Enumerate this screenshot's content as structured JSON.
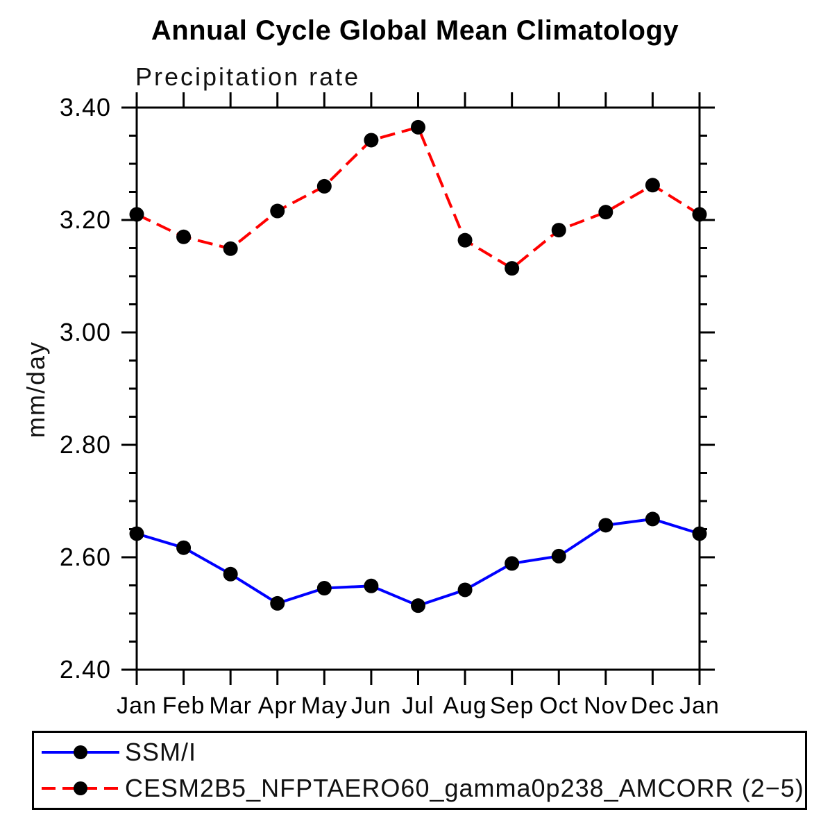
{
  "chart_data": {
    "type": "line",
    "title": "Annual Cycle Global Mean Climatology",
    "subtitle": "Precipitation rate",
    "ylabel": "mm/day",
    "xlabel": "",
    "categories": [
      "Jan",
      "Feb",
      "Mar",
      "Apr",
      "May",
      "Jun",
      "Jul",
      "Aug",
      "Sep",
      "Oct",
      "Nov",
      "Dec",
      "Jan"
    ],
    "ylim": [
      2.4,
      3.4
    ],
    "ytick_labels": [
      "2.40",
      "2.60",
      "2.80",
      "3.00",
      "3.20",
      "3.40"
    ],
    "ytick_minor_step": 0.05,
    "grid": false,
    "legend_position": "bottom-box",
    "frame_color": "#000000",
    "series": [
      {
        "name": "SSM/I",
        "color": "#0000ff",
        "line_style": "solid",
        "marker": "filled-circle",
        "marker_color": "#000000",
        "values": [
          2.642,
          2.617,
          2.57,
          2.518,
          2.545,
          2.549,
          2.514,
          2.542,
          2.589,
          2.602,
          2.657,
          2.668,
          2.642
        ]
      },
      {
        "name": "CESM2B5_NFPTAERO60_gamma0p238_AMCORR (2−5)",
        "color": "#ff0000",
        "line_style": "dashed",
        "marker": "filled-circle",
        "marker_color": "#000000",
        "values": [
          3.21,
          3.17,
          3.149,
          3.216,
          3.26,
          3.342,
          3.365,
          3.164,
          3.114,
          3.182,
          3.214,
          3.262,
          3.21
        ]
      }
    ]
  }
}
